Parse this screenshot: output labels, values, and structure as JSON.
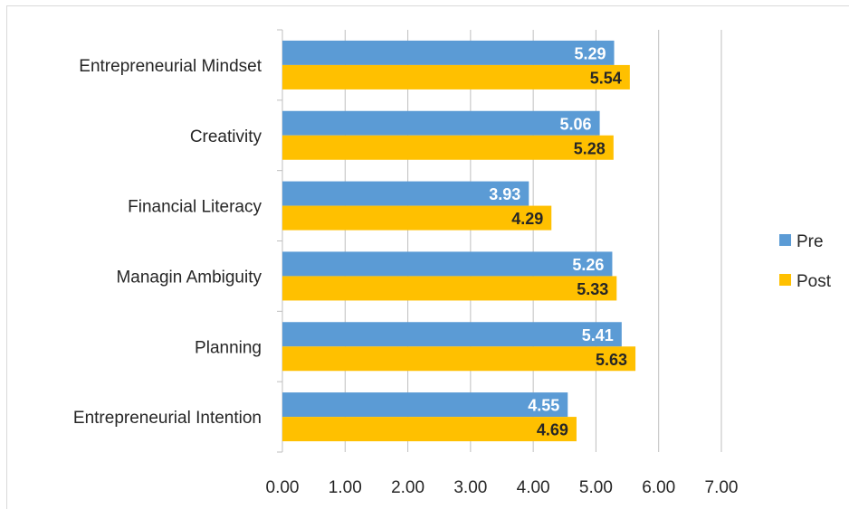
{
  "chart_data": {
    "type": "bar",
    "orientation": "horizontal",
    "categories": [
      "Entrepreneurial Mindset",
      "Creativity",
      "Financial Literacy",
      "Managin Ambiguity",
      "Planning",
      "Entrepreneurial Intention"
    ],
    "series": [
      {
        "name": "Pre",
        "color": "#5b9bd5",
        "label_color": "#ffffff",
        "values": [
          5.29,
          5.06,
          3.93,
          5.26,
          5.41,
          4.55
        ],
        "labels": [
          "5.29",
          "5.06",
          "3.93",
          "5.26",
          "5.41",
          "4.55"
        ]
      },
      {
        "name": "Post",
        "color": "#ffc000",
        "label_color": "#262626",
        "values": [
          5.54,
          5.28,
          4.29,
          5.33,
          5.63,
          4.69
        ],
        "labels": [
          "5.54",
          "5.28",
          "4.29",
          "5.33",
          "5.63",
          "4.69"
        ]
      }
    ],
    "xlim": [
      0,
      7
    ],
    "x_ticks": [
      "0.00",
      "1.00",
      "2.00",
      "3.00",
      "4.00",
      "5.00",
      "6.00",
      "7.00"
    ],
    "title": "",
    "xlabel": "",
    "ylabel": "",
    "grid": "vertical major gridlines",
    "legend_position": "right"
  }
}
